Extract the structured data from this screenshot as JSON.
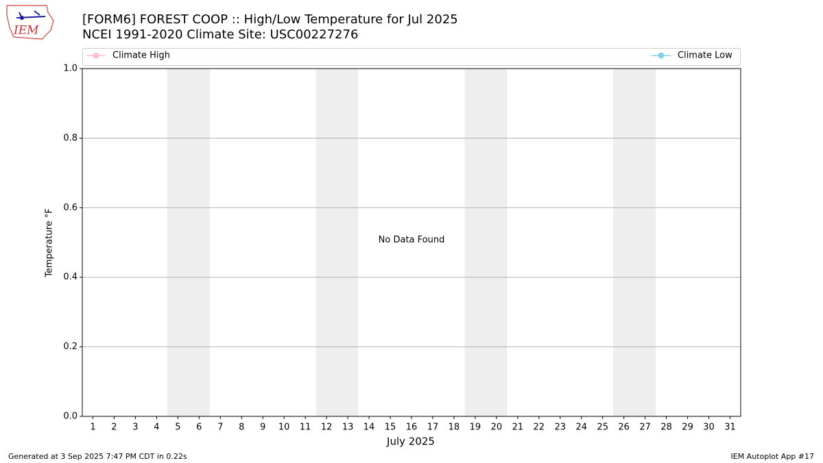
{
  "chart_data": {
    "type": "line",
    "title": "[FORM6] FOREST COOP :: High/Low Temperature for Jul 2025",
    "subtitle": "NCEI 1991-2020 Climate Site: USC00227276",
    "x_label": "July 2025",
    "y_label": "Temperature °F",
    "annotation": "No Data Found",
    "categories": [
      "1",
      "2",
      "3",
      "4",
      "5",
      "6",
      "7",
      "8",
      "9",
      "10",
      "11",
      "12",
      "13",
      "14",
      "15",
      "16",
      "17",
      "18",
      "19",
      "20",
      "21",
      "22",
      "23",
      "24",
      "25",
      "26",
      "27",
      "28",
      "29",
      "30",
      "31"
    ],
    "series": [
      {
        "name": "Climate High",
        "color": "#ffc0cb",
        "values": [
          null,
          null,
          null,
          null,
          null,
          null,
          null,
          null,
          null,
          null,
          null,
          null,
          null,
          null,
          null,
          null,
          null,
          null,
          null,
          null,
          null,
          null,
          null,
          null,
          null,
          null,
          null,
          null,
          null,
          null,
          null
        ]
      },
      {
        "name": "Climate Low",
        "color": "#87ceeb",
        "values": [
          null,
          null,
          null,
          null,
          null,
          null,
          null,
          null,
          null,
          null,
          null,
          null,
          null,
          null,
          null,
          null,
          null,
          null,
          null,
          null,
          null,
          null,
          null,
          null,
          null,
          null,
          null,
          null,
          null,
          null,
          null
        ]
      }
    ],
    "shaded_ranges": [
      [
        4.5,
        6.5
      ],
      [
        11.5,
        13.5
      ],
      [
        18.5,
        20.5
      ],
      [
        25.5,
        27.5
      ]
    ],
    "shade_color": "#eeeeee",
    "xlim": [
      0.5,
      31.5
    ],
    "ylim": [
      0,
      1
    ],
    "yticks": [
      {
        "value": 0,
        "label": "0.0"
      },
      {
        "value": 0.2,
        "label": "0.2"
      },
      {
        "value": 0.4,
        "label": "0.4"
      },
      {
        "value": 0.6,
        "label": "0.6"
      },
      {
        "value": 0.8,
        "label": "0.8"
      },
      {
        "value": 1,
        "label": "1.0"
      }
    ],
    "grid": true
  },
  "logo": {
    "text": "IEM"
  },
  "footer": {
    "left": "Generated at 3 Sep 2025 7:47 PM CDT in 0.22s",
    "right": "IEM Autoplot App #17"
  }
}
